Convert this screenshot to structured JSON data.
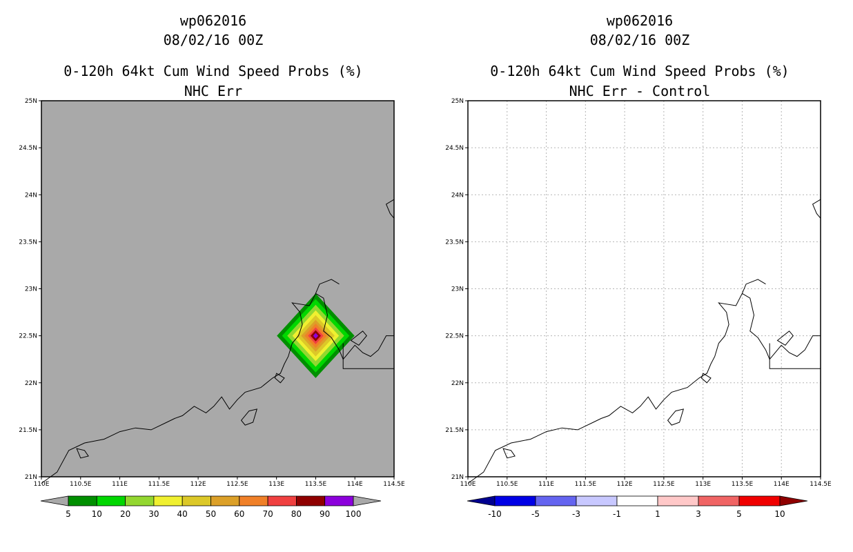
{
  "chart_data": [
    {
      "type": "heatmap",
      "storm_id": "wp062016",
      "datetime": "08/02/16 00Z",
      "title": "0-120h 64kt Cum Wind Speed Probs (%)",
      "subtitle": "NHC Err",
      "xlim": [
        110,
        114.5
      ],
      "ylim": [
        21,
        25
      ],
      "xticks": [
        110,
        110.5,
        111,
        111.5,
        112,
        112.5,
        113,
        113.5,
        114,
        114.5
      ],
      "xtick_labels": [
        "110E",
        "110.5E",
        "111E",
        "111.5E",
        "112E",
        "112.5E",
        "113E",
        "113.5E",
        "114E",
        "114.5E"
      ],
      "yticks": [
        21,
        21.5,
        22,
        22.5,
        23,
        23.5,
        24,
        24.5,
        25
      ],
      "ytick_labels": [
        "21N",
        "21.5N",
        "22N",
        "22.5N",
        "23N",
        "23.5N",
        "24N",
        "24.5N",
        "25N"
      ],
      "grid": false,
      "background": "#a9a9a9",
      "probability_field": {
        "center": [
          113.5,
          22.5
        ],
        "rings": [
          {
            "min_value": 5,
            "half_width_deg": 0.45
          },
          {
            "min_value": 10,
            "half_width_deg": 0.39
          },
          {
            "min_value": 20,
            "half_width_deg": 0.33
          },
          {
            "min_value": 30,
            "half_width_deg": 0.27
          },
          {
            "min_value": 40,
            "half_width_deg": 0.22
          },
          {
            "min_value": 50,
            "half_width_deg": 0.17
          },
          {
            "min_value": 60,
            "half_width_deg": 0.13
          },
          {
            "min_value": 70,
            "half_width_deg": 0.09
          },
          {
            "min_value": 80,
            "half_width_deg": 0.06
          },
          {
            "min_value": 90,
            "half_width_deg": 0.03
          }
        ]
      },
      "colorbar": {
        "labels": [
          "5",
          "10",
          "20",
          "30",
          "40",
          "50",
          "60",
          "70",
          "80",
          "90",
          "100"
        ],
        "colors": [
          "#008f00",
          "#00d700",
          "#93d730",
          "#f0f030",
          "#dcc828",
          "#dca028",
          "#f08028",
          "#f04040",
          "#8f0000",
          "#8c00dc"
        ],
        "under_color": "#a9a9a9",
        "over_color": "#a9a9a9"
      }
    },
    {
      "type": "heatmap",
      "storm_id": "wp062016",
      "datetime": "08/02/16 00Z",
      "title": "0-120h 64kt Cum Wind Speed Probs (%)",
      "subtitle": "NHC Err - Control",
      "xlim": [
        110,
        114.5
      ],
      "ylim": [
        21,
        25
      ],
      "xticks": [
        110,
        110.5,
        111,
        111.5,
        112,
        112.5,
        113,
        113.5,
        114,
        114.5
      ],
      "xtick_labels": [
        "110E",
        "110.5E",
        "111E",
        "111.5E",
        "112E",
        "112.5E",
        "113E",
        "113.5E",
        "114E",
        "114.5E"
      ],
      "yticks": [
        21,
        21.5,
        22,
        22.5,
        23,
        23.5,
        24,
        24.5,
        25
      ],
      "ytick_labels": [
        "21N",
        "21.5N",
        "22N",
        "22.5N",
        "23N",
        "23.5N",
        "24N",
        "24.5N",
        "25N"
      ],
      "grid": true,
      "background": "#ffffff",
      "difference_field": "all values between -1 and 1",
      "colorbar": {
        "labels": [
          "-10",
          "-5",
          "-3",
          "-1",
          "1",
          "3",
          "5",
          "10"
        ],
        "colors": [
          "#0000e6",
          "#6464f0",
          "#c8c8ff",
          "#ffffff",
          "#ffc8c8",
          "#f06464",
          "#f00000"
        ],
        "under_color": "#000090",
        "over_color": "#8f0000"
      }
    }
  ],
  "coastline": {
    "main": [
      [
        110.0,
        20.93
      ],
      [
        110.2,
        21.05
      ],
      [
        110.35,
        21.28
      ],
      [
        110.55,
        21.36
      ],
      [
        110.8,
        21.4
      ],
      [
        111.0,
        21.48
      ],
      [
        111.2,
        21.52
      ],
      [
        111.4,
        21.5
      ],
      [
        111.6,
        21.58
      ],
      [
        111.7,
        21.62
      ],
      [
        111.8,
        21.65
      ],
      [
        111.95,
        21.75
      ],
      [
        112.1,
        21.68
      ],
      [
        112.2,
        21.75
      ],
      [
        112.3,
        21.85
      ],
      [
        112.4,
        21.72
      ],
      [
        112.5,
        21.82
      ],
      [
        112.6,
        21.9
      ],
      [
        112.8,
        21.95
      ],
      [
        112.95,
        22.05
      ],
      [
        113.05,
        22.1
      ],
      [
        113.1,
        22.2
      ],
      [
        113.15,
        22.28
      ],
      [
        113.2,
        22.42
      ],
      [
        113.28,
        22.5
      ],
      [
        113.33,
        22.62
      ],
      [
        113.3,
        22.75
      ],
      [
        113.2,
        22.85
      ],
      [
        113.42,
        22.82
      ],
      [
        113.5,
        22.95
      ],
      [
        113.6,
        22.9
      ],
      [
        113.65,
        22.72
      ],
      [
        113.6,
        22.55
      ],
      [
        113.7,
        22.48
      ],
      [
        113.8,
        22.35
      ],
      [
        113.85,
        22.25
      ],
      [
        113.9,
        22.3
      ],
      [
        114.0,
        22.4
      ],
      [
        114.1,
        22.32
      ],
      [
        114.2,
        22.28
      ],
      [
        114.3,
        22.35
      ],
      [
        114.4,
        22.5
      ],
      [
        114.5,
        22.5
      ]
    ],
    "islands": [
      [
        [
          112.55,
          21.6
        ],
        [
          112.65,
          21.7
        ],
        [
          112.75,
          21.72
        ],
        [
          112.7,
          21.58
        ],
        [
          112.6,
          21.55
        ],
        [
          112.55,
          21.6
        ]
      ],
      [
        [
          110.45,
          21.3
        ],
        [
          110.55,
          21.28
        ],
        [
          110.6,
          21.22
        ],
        [
          110.5,
          21.2
        ],
        [
          110.45,
          21.3
        ]
      ],
      [
        [
          113.0,
          22.1
        ],
        [
          113.1,
          22.05
        ],
        [
          113.05,
          22.0
        ],
        [
          112.98,
          22.05
        ],
        [
          113.0,
          22.1
        ]
      ],
      [
        [
          113.95,
          22.45
        ],
        [
          114.05,
          22.4
        ],
        [
          114.15,
          22.5
        ],
        [
          114.1,
          22.55
        ],
        [
          113.95,
          22.45
        ]
      ]
    ],
    "river": [
      [
        113.5,
        22.95
      ],
      [
        113.55,
        23.05
      ],
      [
        113.7,
        23.1
      ],
      [
        113.8,
        23.05
      ]
    ],
    "hk_box": [
      [
        114.5,
        22.15
      ],
      [
        113.85,
        22.15
      ],
      [
        113.85,
        22.42
      ]
    ],
    "northeast_edge": [
      [
        114.5,
        23.95
      ],
      [
        114.4,
        23.9
      ],
      [
        114.45,
        23.8
      ],
      [
        114.5,
        23.75
      ]
    ]
  }
}
